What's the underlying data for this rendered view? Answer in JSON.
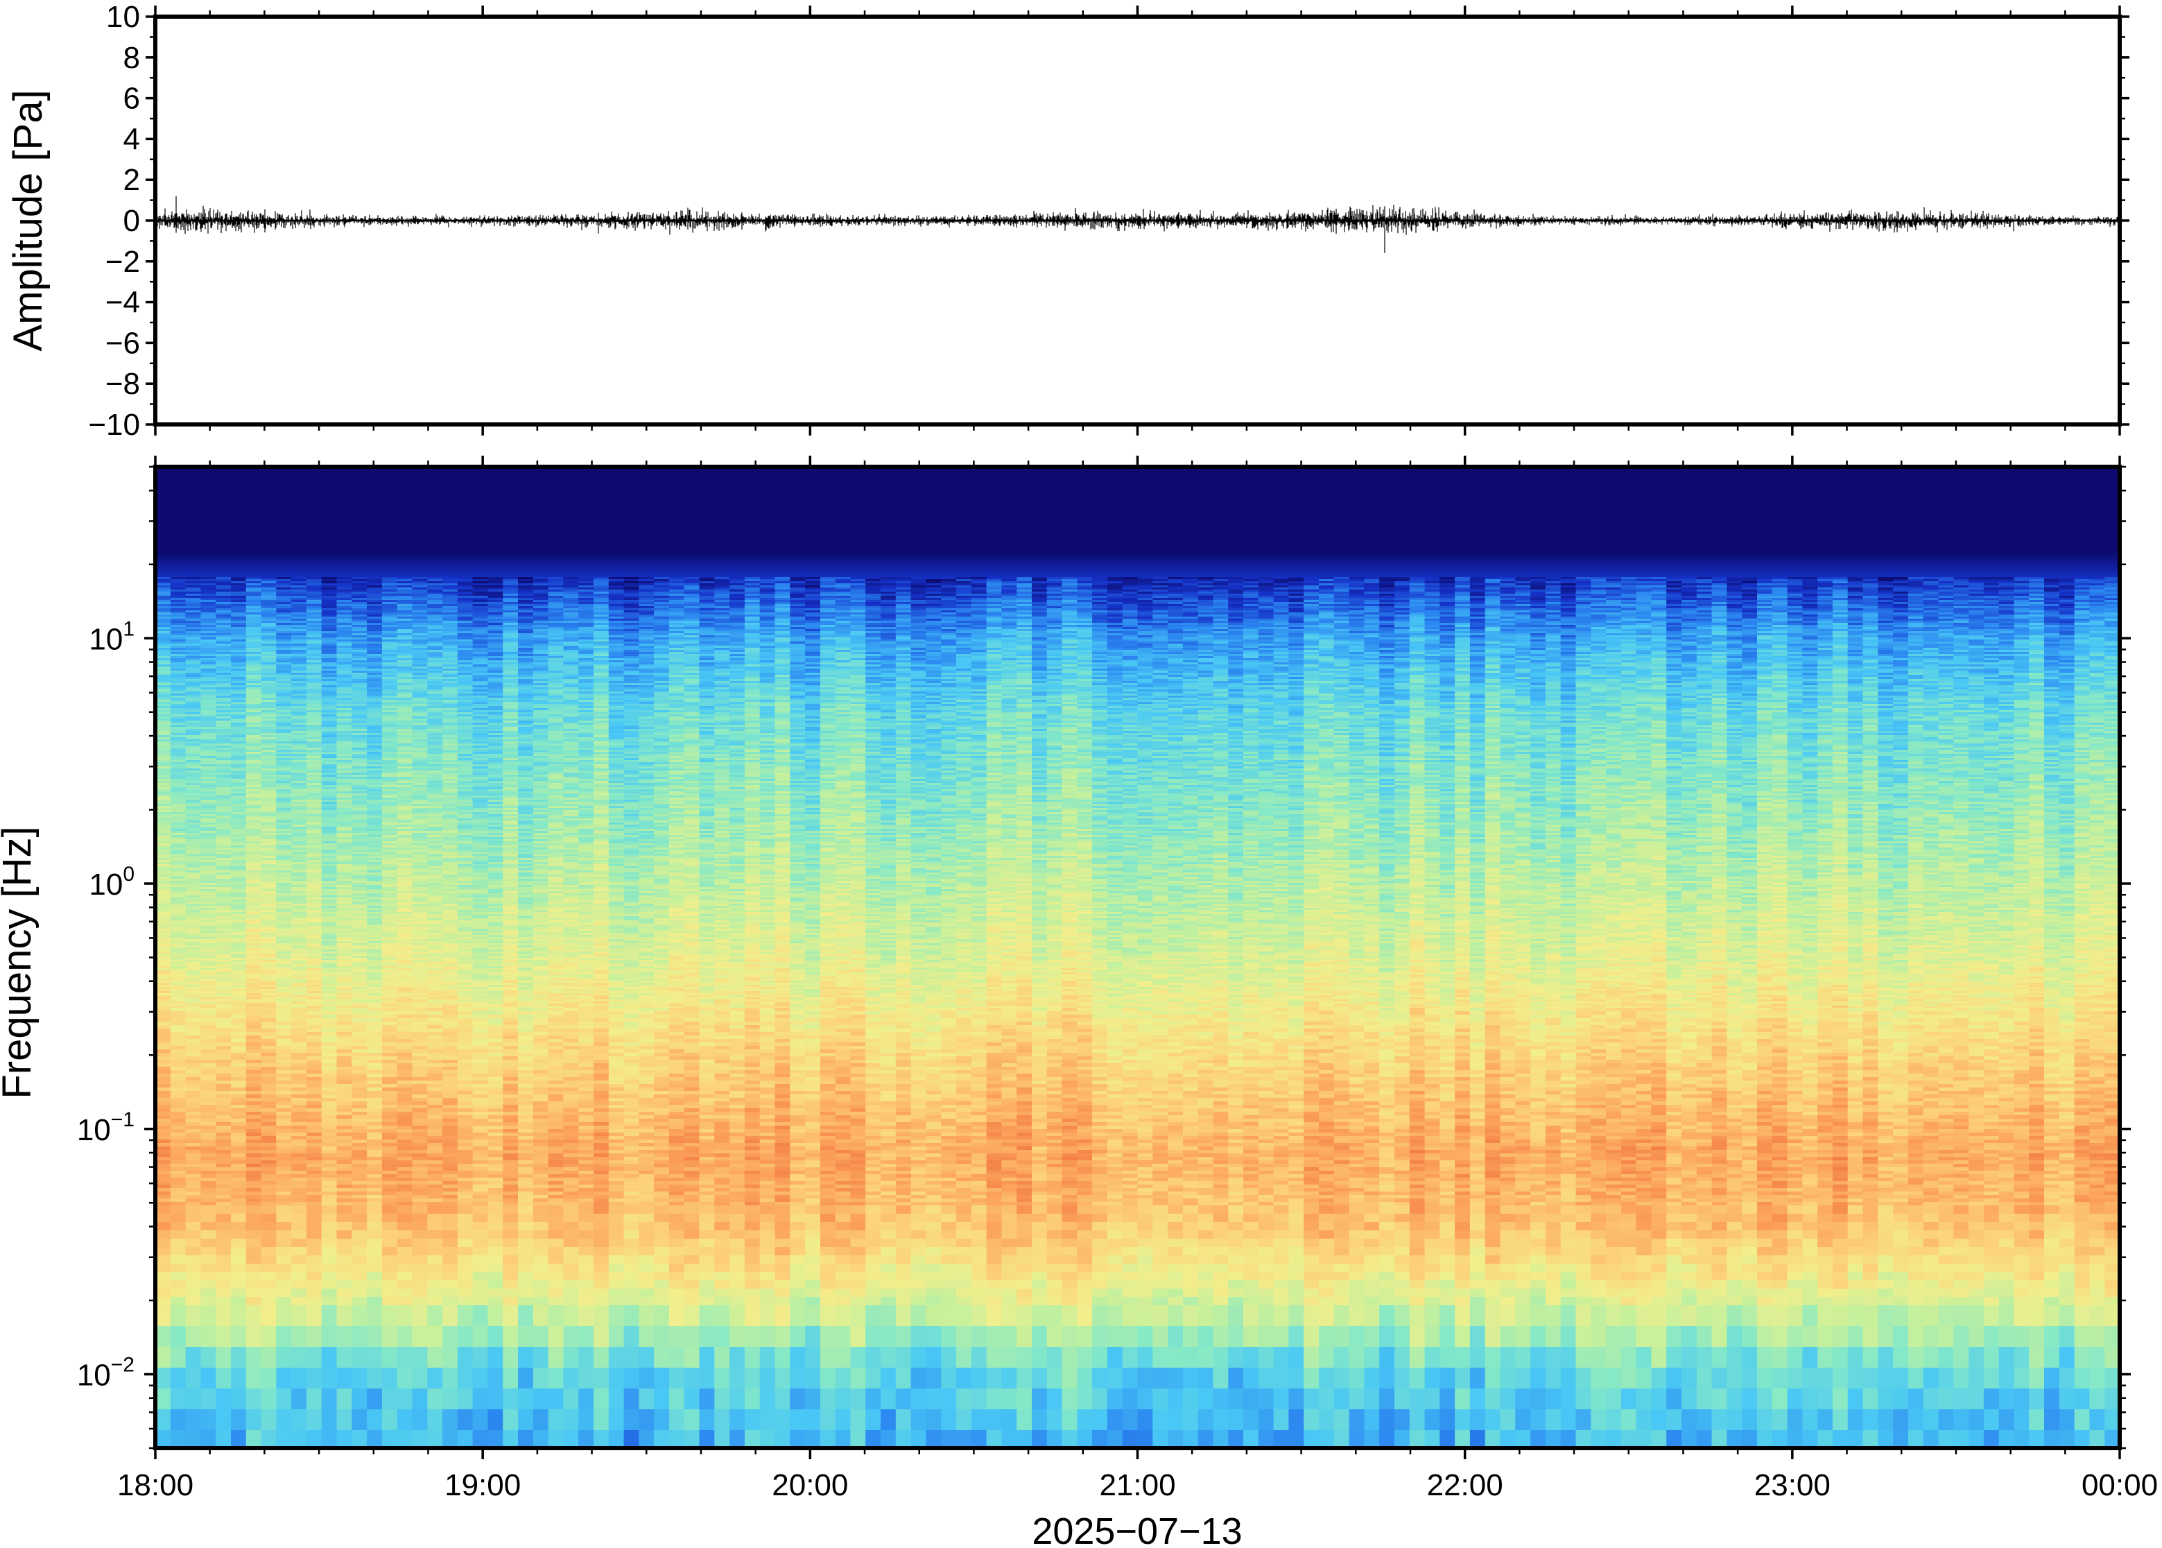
{
  "chart_data": [
    {
      "type": "line",
      "name": "waveform",
      "ylabel": "Amplitude [Pa]",
      "ylim": [
        -10,
        10
      ],
      "yticks": [
        10,
        8,
        6,
        4,
        2,
        0,
        -2,
        -4,
        -6,
        -8,
        -10
      ],
      "ytick_labels": [
        "10",
        "8",
        "6",
        "4",
        "2",
        "0",
        "−2",
        "−4",
        "−6",
        "−8",
        "−10"
      ],
      "x_range": [
        "18:00",
        "00:00"
      ],
      "series_summary": {
        "baseline": 0,
        "typical_peak": 0.6,
        "max_peak": 1.2,
        "min_trough": -1.6
      },
      "line_color": "#000000",
      "grid": false
    },
    {
      "type": "heatmap",
      "name": "spectrogram",
      "ylabel": "Frequency [Hz]",
      "yscale": "log",
      "ylim": [
        0.005,
        50
      ],
      "yticks": [
        0.01,
        0.1,
        1,
        10
      ],
      "ytick_labels": [
        {
          "base": "10",
          "exp": "−2"
        },
        {
          "base": "10",
          "exp": "−1"
        },
        {
          "base": "10",
          "exp": "0"
        },
        {
          "base": "10",
          "exp": "1"
        }
      ],
      "xticks": [
        "18:00",
        "19:00",
        "20:00",
        "21:00",
        "22:00",
        "23:00",
        "00:00"
      ],
      "xlabel": "2025−07−13",
      "colormap": [
        "#0c0a6e",
        "#1532c8",
        "#2b86f0",
        "#4ac8f5",
        "#84e8c8",
        "#c6f09c",
        "#f2ee8c",
        "#fcd27a",
        "#fca65e",
        "#f27a42"
      ],
      "power_profile": "low power above ~20 Hz (dark blue), blue-cyan 3–15 Hz, green 0.5–3 Hz, yellow-orange 0.05–0.5 Hz with peak near 0.07–0.1 Hz, cyan-blue below 0.015 Hz",
      "grid": false
    }
  ]
}
